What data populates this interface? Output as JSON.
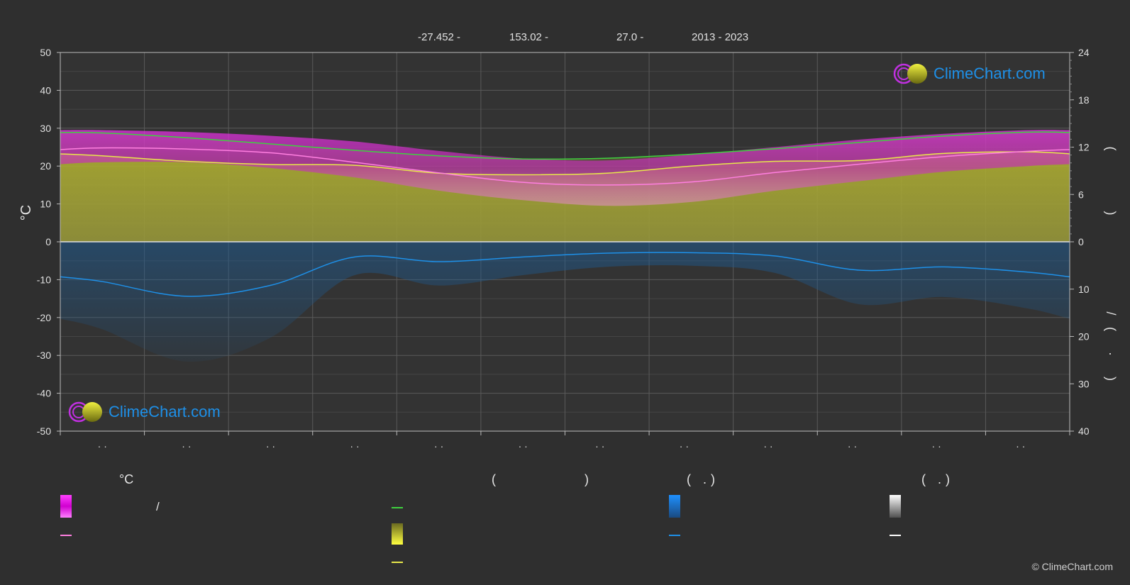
{
  "header": {
    "lat": "-27.452 -",
    "lon": "153.02 -",
    "elev": "27.0 -",
    "years": "2013 - 2023"
  },
  "axes": {
    "left_title": "°C",
    "left_ticks": [
      "50",
      "40",
      "30",
      "20",
      "10",
      "0",
      "-10",
      "-20",
      "-30",
      "-40",
      "-50"
    ],
    "right_ticks_top": [
      "24",
      "18",
      "12",
      "6",
      "0"
    ],
    "right_ticks_bottom": [
      "10",
      "20",
      "30",
      "40"
    ],
    "right_title_top": "( )",
    "right_title_slash": "/",
    "right_title_bottom": "( · )",
    "month_labels": [
      "· ·",
      "· ·",
      "· ·",
      "· ·",
      "· ·",
      "· ·",
      "· ·",
      "· ·",
      "· ·",
      "· ·",
      "· ·",
      "· ·"
    ]
  },
  "legend": {
    "col1_title": "°C",
    "col1_item1": "/",
    "col2_title": "( )",
    "col3_title": "( .)",
    "col4_title": "( .)"
  },
  "logo": {
    "text": "ClimeChart.com"
  },
  "copyright": "© ClimeChart.com",
  "colors": {
    "background": "#2f2f2f",
    "daylight": "#3fd23f",
    "sunshine": "#e8e84a",
    "temp_mean": "#ff7fe0",
    "temp_band": "#d020d0",
    "rain": "#1e90e8",
    "snow": "#ffffff"
  },
  "chart_data": {
    "type": "area",
    "x": [
      1,
      2,
      3,
      4,
      5,
      6,
      7,
      8,
      9,
      10,
      11,
      12
    ],
    "ylim_left": [
      -50,
      50
    ],
    "ylim_right_hours": [
      0,
      24
    ],
    "ylim_right_mm": [
      0,
      40
    ],
    "grid": true,
    "series": [
      {
        "key": "daylight",
        "unit": "hours",
        "values": [
          13.8,
          13.2,
          12.4,
          11.6,
          10.9,
          10.5,
          10.6,
          11.1,
          11.8,
          12.6,
          13.4,
          13.9
        ]
      },
      {
        "key": "sunshine",
        "unit": "hours",
        "values": [
          10.9,
          10.2,
          9.8,
          9.7,
          8.7,
          8.5,
          8.7,
          9.6,
          10.2,
          10.3,
          11.2,
          11.4
        ]
      },
      {
        "key": "temp_mean",
        "unit": "°C",
        "values": [
          24.8,
          24.5,
          23.5,
          21.0,
          18.2,
          15.7,
          15.0,
          15.8,
          18.3,
          20.5,
          22.5,
          23.9
        ]
      },
      {
        "key": "temp_max",
        "unit": "°C",
        "values": [
          29.5,
          29.0,
          28.0,
          26.5,
          24.0,
          22.0,
          21.5,
          23.0,
          25.0,
          27.0,
          28.5,
          29.5
        ]
      },
      {
        "key": "temp_min",
        "unit": "°C",
        "values": [
          21.0,
          21.0,
          19.5,
          17.0,
          13.5,
          11.0,
          9.5,
          10.5,
          13.5,
          16.0,
          18.5,
          20.0
        ]
      },
      {
        "key": "precip",
        "unit": "mm",
        "values": [
          8.4,
          11.5,
          9.2,
          3.2,
          4.2,
          3.2,
          2.4,
          2.3,
          3.0,
          6.0,
          5.3,
          6.4
        ]
      }
    ]
  }
}
